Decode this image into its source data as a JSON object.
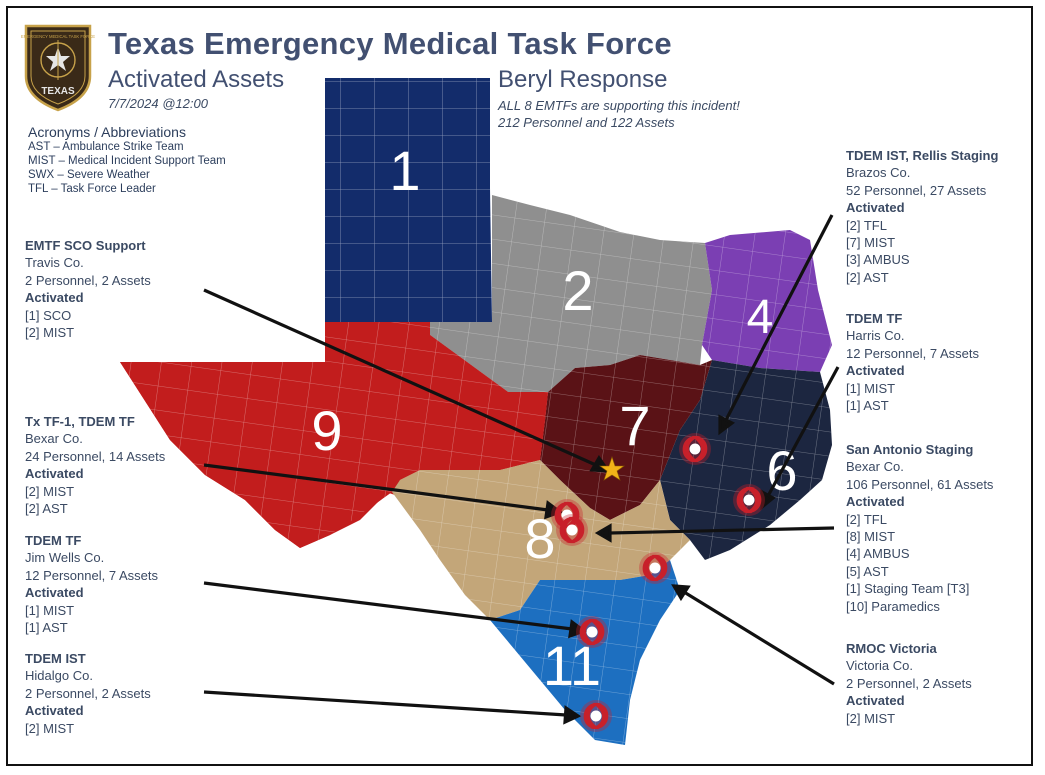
{
  "header": {
    "title": "Texas Emergency Medical Task Force",
    "subtitle_left": "Activated Assets",
    "subtitle_right": "Beryl Response",
    "date": "7/7/2024 @12:00",
    "note_line1": "ALL 8 EMTFs are supporting this incident!",
    "note_line2": "212 Personnel and 122 Assets"
  },
  "logo": {
    "text_top": "EMERGENCY MEDICAL TASK FORCE",
    "text_bottom": "TEXAS",
    "icon": "texas-star-badge-icon"
  },
  "acronyms": {
    "heading": "Acronyms / Abbreviations",
    "items": [
      "AST – Ambulance Strike Team",
      "MIST – Medical Incident Support Team",
      "SWX – Severe Weather",
      "TFL – Task Force Leader"
    ]
  },
  "regions": [
    {
      "label": "1",
      "color": "#132c6b"
    },
    {
      "label": "2",
      "color": "#8f8f8f"
    },
    {
      "label": "4",
      "color": "#7b3fb3"
    },
    {
      "label": "6",
      "color": "#1c2640"
    },
    {
      "label": "7",
      "color": "#5a1216"
    },
    {
      "label": "8",
      "color": "#c3a679"
    },
    {
      "label": "9",
      "color": "#c21d1d"
    },
    {
      "label": "11",
      "color": "#1d6fc0"
    }
  ],
  "deployments_left": [
    {
      "title": "EMTF SCO Support",
      "county": "Travis Co.",
      "summary": "2 Personnel, 2 Assets",
      "activated_label": "Activated",
      "items": [
        "[1] SCO",
        "[2] MIST"
      ]
    },
    {
      "title": "Tx TF-1, TDEM TF",
      "county": "Bexar Co.",
      "summary": "24 Personnel, 14 Assets",
      "activated_label": "Activated",
      "items": [
        "[2] MIST",
        "[2] AST"
      ]
    },
    {
      "title": "TDEM TF",
      "county": "Jim Wells Co.",
      "summary": "12 Personnel, 7 Assets",
      "activated_label": "Activated",
      "items": [
        "[1] MIST",
        "[1] AST"
      ]
    },
    {
      "title": "TDEM IST",
      "county": "Hidalgo Co.",
      "summary": "2 Personnel, 2 Assets",
      "activated_label": "Activated",
      "items": [
        "[2] MIST"
      ]
    }
  ],
  "deployments_right": [
    {
      "title": "TDEM IST, Rellis Staging",
      "county": "Brazos Co.",
      "summary": "52 Personnel, 27 Assets",
      "activated_label": "Activated",
      "items": [
        "[2] TFL",
        "[7] MIST",
        "[3] AMBUS",
        "[2] AST"
      ]
    },
    {
      "title": "TDEM TF",
      "county": "Harris Co.",
      "summary": "12 Personnel, 7 Assets",
      "activated_label": "Activated",
      "items": [
        "[1] MIST",
        "[1] AST"
      ]
    },
    {
      "title": "San Antonio Staging",
      "county": "Bexar Co.",
      "summary": "106 Personnel, 61 Assets",
      "activated_label": "Activated",
      "items": [
        "[2] TFL",
        "[8] MIST",
        "[4] AMBUS",
        "[5] AST",
        "[1] Staging Team [T3]",
        "[10] Paramedics"
      ]
    },
    {
      "title": "RMOC Victoria",
      "county": "Victoria Co.",
      "summary": "2 Personnel, 2 Assets",
      "activated_label": "Activated",
      "items": [
        "[2] MIST"
      ]
    }
  ],
  "icons": {
    "hurricane": "hurricane-icon",
    "capital": "star-icon",
    "marker_color": "#c8202a"
  }
}
